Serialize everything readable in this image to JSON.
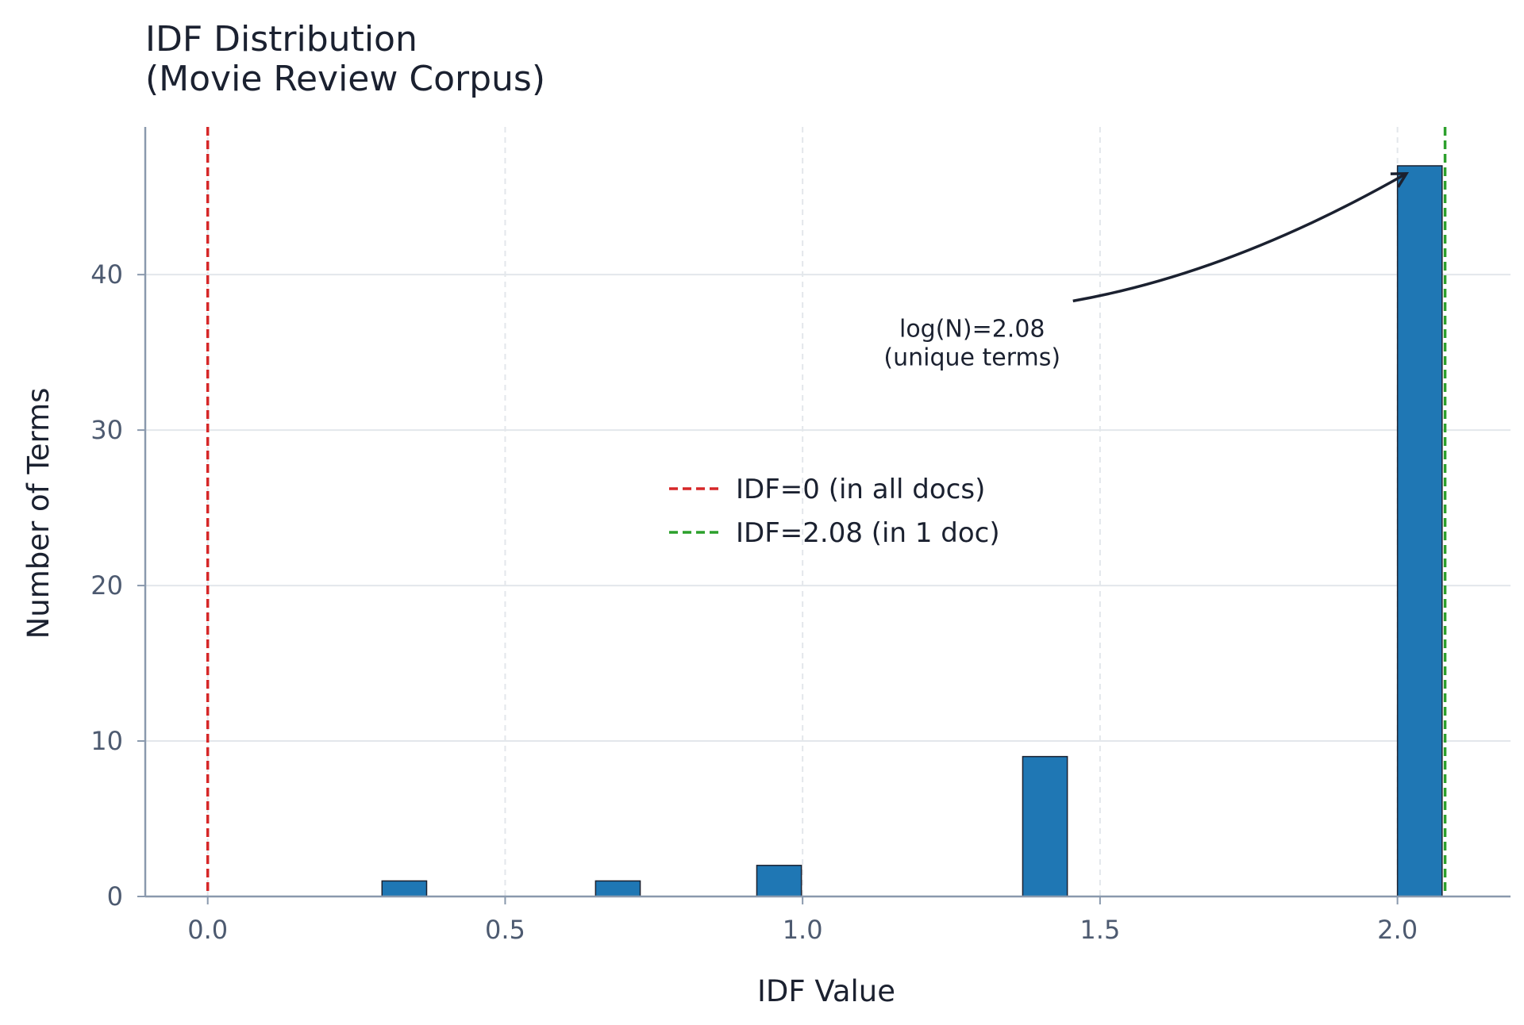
{
  "chart_data": {
    "type": "bar",
    "title": "IDF Distribution",
    "subtitle": "(Movie Review Corpus)",
    "xlabel": "IDF Value",
    "ylabel": "Number of Terms",
    "xlim": [
      -0.105,
      2.19
    ],
    "ylim": [
      0,
      49.5
    ],
    "xticks": [
      0.0,
      0.5,
      1.0,
      1.5,
      2.0
    ],
    "xtick_labels": [
      "0.0",
      "0.5",
      "1.0",
      "1.5",
      "2.0"
    ],
    "yticks": [
      0,
      10,
      20,
      30,
      40
    ],
    "ytick_labels": [
      "0",
      "10",
      "20",
      "30",
      "40"
    ],
    "bin_width": 0.075,
    "bars": [
      {
        "x_start": 0.293,
        "count": 1
      },
      {
        "x_start": 0.652,
        "count": 1
      },
      {
        "x_start": 0.923,
        "count": 2
      },
      {
        "x_start": 1.37,
        "count": 9
      },
      {
        "x_start": 2.0,
        "count": 47
      }
    ],
    "bar_color": "#1f77b4",
    "grid": true,
    "reference_lines": [
      {
        "x": 0.0,
        "label": "IDF=0 (in all docs)",
        "color": "#d62728",
        "style": "dashed"
      },
      {
        "x": 2.08,
        "label": "IDF=2.08 (in 1 doc)",
        "color": "#2ca02c",
        "style": "dashed"
      }
    ],
    "legend_position": "center",
    "annotation": {
      "lines": [
        "log(N)=2.08",
        "(unique terms)"
      ],
      "text_x": 1.285,
      "text_y": 35.5,
      "arrow_to_x": 2.015,
      "arrow_to_y": 46.5
    }
  }
}
